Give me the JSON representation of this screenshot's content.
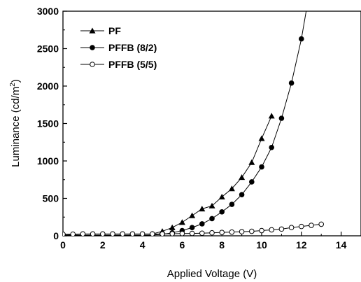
{
  "chart_data": {
    "type": "line",
    "xlabel": "Applied Voltage (V)",
    "ylabel": "Luminance (cd/m",
    "ylabel_sup": "2",
    "ylabel_close": ")",
    "xlim": [
      0,
      15
    ],
    "ylim": [
      0,
      3000
    ],
    "x_ticks": [
      "0",
      "2",
      "4",
      "6",
      "8",
      "10",
      "12",
      "14"
    ],
    "y_ticks": [
      "0",
      "500",
      "1000",
      "1500",
      "2000",
      "2500",
      "3000"
    ],
    "legend_position": "top-left",
    "grid": false,
    "series": [
      {
        "name": "PF",
        "marker": "filled-triangle",
        "x": [
          0,
          0.5,
          1,
          1.5,
          2,
          2.5,
          3,
          3.5,
          4,
          4.5,
          5,
          5.5,
          6,
          6.5,
          7,
          7.5,
          8,
          8.5,
          9,
          9.5,
          10,
          10.5
        ],
        "y": [
          10,
          15,
          20,
          20,
          20,
          20,
          20,
          20,
          20,
          25,
          60,
          110,
          180,
          270,
          360,
          400,
          520,
          630,
          780,
          980,
          1300,
          1600
        ]
      },
      {
        "name": "PFFB (8/2)",
        "marker": "filled-circle",
        "x": [
          0,
          0.5,
          1,
          1.5,
          2,
          2.5,
          3,
          3.5,
          4,
          4.5,
          5,
          5.5,
          6,
          6.5,
          7,
          7.5,
          8,
          8.5,
          9,
          9.5,
          10,
          10.5,
          11,
          11.5,
          12,
          12.5
        ],
        "y": [
          5,
          5,
          5,
          5,
          5,
          5,
          5,
          5,
          5,
          10,
          20,
          40,
          70,
          110,
          160,
          230,
          320,
          420,
          550,
          720,
          920,
          1180,
          1570,
          2040,
          2630,
          3400
        ]
      },
      {
        "name": "PFFB (5/5)",
        "marker": "open-circle",
        "x": [
          0,
          0.5,
          1,
          1.5,
          2,
          2.5,
          3,
          3.5,
          4,
          4.5,
          5,
          5.5,
          6,
          6.5,
          7,
          7.5,
          8,
          8.5,
          9,
          9.5,
          10,
          10.5,
          11,
          11.5,
          12,
          12.5,
          13
        ],
        "y": [
          20,
          22,
          25,
          25,
          25,
          25,
          25,
          25,
          25,
          25,
          25,
          28,
          30,
          32,
          35,
          40,
          45,
          50,
          55,
          60,
          70,
          80,
          90,
          110,
          125,
          140,
          155
        ]
      }
    ]
  }
}
